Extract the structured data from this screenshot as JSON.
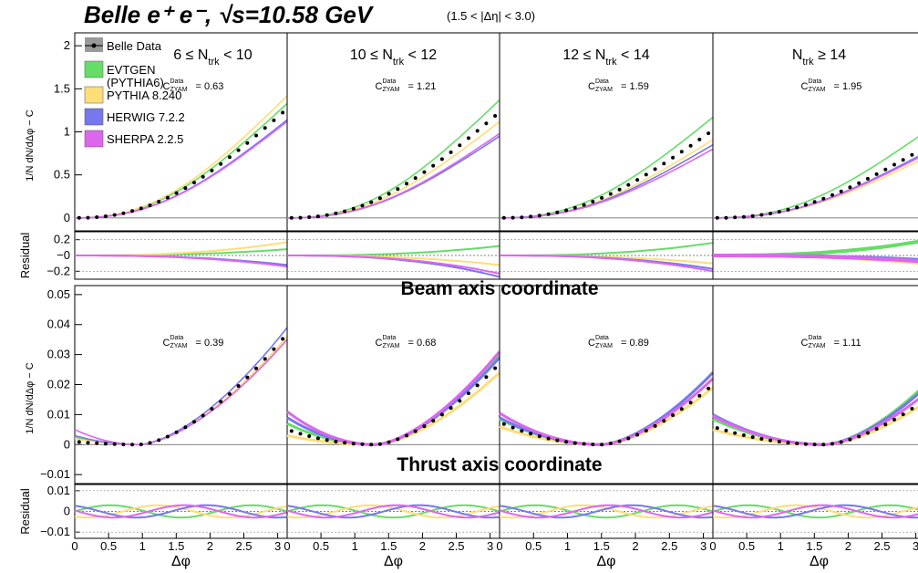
{
  "figure": {
    "title": "Belle e⁺ e⁻,",
    "energy": "√s=10.58 GeV",
    "eta_range": "(1.5 < |Δη| < 3.0)",
    "colors": {
      "data": "#000000",
      "evtgen": "#66dd66",
      "pythia": "#ffdd77",
      "herwig": "#7777ee",
      "sherpa": "#dd66ee"
    }
  },
  "chart_data": {
    "type": "line",
    "xlabel": "Δφ",
    "x_ticks": [
      "0",
      "0.5",
      "1",
      "1.5",
      "2",
      "2.5",
      "3"
    ],
    "xlim": [
      0,
      3.14
    ],
    "residual_ylabel": "Residual",
    "legend": [
      {
        "key": "data",
        "label": "Belle Data"
      },
      {
        "key": "evtgen",
        "label": "EVTGEN",
        "label2": "(PYTHIA6)"
      },
      {
        "key": "pythia",
        "label": "PYTHIA 8.240"
      },
      {
        "key": "herwig",
        "label": "HERWIG 7.2.2"
      },
      {
        "key": "sherpa",
        "label": "SHERPA 2.2.5"
      }
    ],
    "columns": [
      {
        "label": "6 ≤ N",
        "sub": "trk",
        "tail": " < 10"
      },
      {
        "label": "10 ≤ N",
        "sub": "trk",
        "tail": " < 12"
      },
      {
        "label": "12 ≤ N",
        "sub": "trk",
        "tail": " < 14"
      },
      {
        "label": "N",
        "sub": "trk",
        "tail": " ≥ 14"
      }
    ],
    "rows": [
      {
        "name": "Beam axis coordinate",
        "ylim": [
          -0.15,
          2.15
        ],
        "yticks": [
          "0",
          "0.5",
          "1",
          "1.5",
          "2"
        ],
        "ytick_values": [
          0,
          0.5,
          1,
          1.5,
          2
        ],
        "res_ylim": [
          -0.3,
          0.3
        ],
        "res_yticks": [
          "0.2",
          "−0",
          "−0.2"
        ],
        "res_ytick_values": [
          0.2,
          0,
          -0.2
        ],
        "panels": [
          {
            "czyam": "0.63",
            "data_max": 1.27,
            "evtgen_max": 1.33,
            "pythia_max": 1.42,
            "herwig_max": 1.14,
            "sherpa_max": 1.12,
            "res": {
              "evtgen": 0.08,
              "pythia": 0.17,
              "herwig": -0.12,
              "sherpa": -0.14
            }
          },
          {
            "czyam": "1.21",
            "data_max": 1.23,
            "evtgen_max": 1.37,
            "pythia_max": 1.12,
            "herwig_max": 0.95,
            "sherpa_max": 0.98,
            "res": {
              "evtgen": 0.12,
              "pythia": -0.12,
              "herwig": -0.27,
              "sherpa": -0.23
            }
          },
          {
            "czyam": "1.59",
            "data_max": 1.02,
            "evtgen_max": 1.17,
            "pythia_max": 0.91,
            "herwig_max": 0.85,
            "sherpa_max": 0.8,
            "res": {
              "evtgen": 0.16,
              "pythia": -0.1,
              "herwig": -0.17,
              "sherpa": -0.2
            }
          },
          {
            "czyam": "1.95",
            "data_max": 0.82,
            "evtgen_max": 1.0,
            "pythia_max": 0.7,
            "herwig_max": 0.76,
            "sherpa_max": 0.74,
            "res": {
              "evtgen": 0.19,
              "pythia": -0.1,
              "herwig": -0.06,
              "sherpa": -0.08
            }
          }
        ]
      },
      {
        "name": "Thrust axis coordinate",
        "ylim": [
          -0.013,
          0.053
        ],
        "yticks": [
          "−0.01",
          "0",
          "0.01",
          "0.02",
          "0.03",
          "0.04",
          "0.05"
        ],
        "ytick_values": [
          -0.01,
          0,
          0.01,
          0.02,
          0.03,
          0.04,
          0.05
        ],
        "res_ylim": [
          -0.013,
          0.013
        ],
        "res_yticks": [
          "0.01",
          "0",
          "−0.01"
        ],
        "res_ytick_values": [
          0.01,
          0,
          -0.01
        ],
        "panels": [
          {
            "czyam": "0.39",
            "data_start": 0.001,
            "data_max": 0.037,
            "evtgen_start": 0.0025,
            "evtgen_max": 0.036,
            "pythia_start": 0.002,
            "pythia_max": 0.036,
            "herwig_start": 0.003,
            "herwig_max": 0.039,
            "sherpa_start": 0.005,
            "sherpa_max": 0.035,
            "minx": 0.95
          },
          {
            "czyam": "0.68",
            "data_start": 0.005,
            "data_max": 0.027,
            "evtgen_start": 0.007,
            "evtgen_max": 0.03,
            "pythia_start": 0.003,
            "pythia_max": 0.024,
            "herwig_start": 0.009,
            "herwig_max": 0.029,
            "sherpa_start": 0.011,
            "sherpa_max": 0.031,
            "minx": 1.3
          },
          {
            "czyam": "0.89",
            "data_start": 0.0075,
            "data_max": 0.02,
            "evtgen_start": 0.0085,
            "evtgen_max": 0.024,
            "pythia_start": 0.006,
            "pythia_max": 0.019,
            "herwig_start": 0.009,
            "herwig_max": 0.024,
            "sherpa_start": 0.0105,
            "sherpa_max": 0.022,
            "minx": 1.5
          },
          {
            "czyam": "1.11",
            "data_start": 0.006,
            "data_max": 0.015,
            "evtgen_start": 0.0085,
            "evtgen_max": 0.02,
            "pythia_start": 0.005,
            "pythia_max": 0.014,
            "herwig_start": 0.01,
            "herwig_max": 0.019,
            "sherpa_start": 0.0095,
            "sherpa_max": 0.017,
            "minx": 1.65
          }
        ]
      }
    ]
  }
}
